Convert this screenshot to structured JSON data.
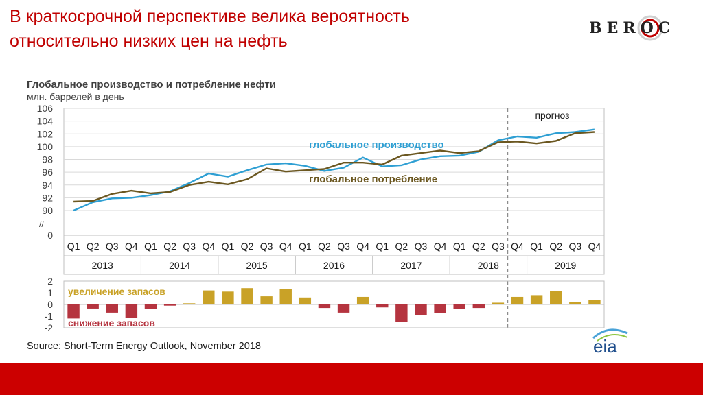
{
  "slide": {
    "title": "В краткосрочной перспективе велика вероятность относительно низких цен на нефть",
    "logo_text": "BEROC",
    "source": "Source: Short-Term Energy Outlook, November 2018",
    "source_logo_text": "eia"
  },
  "colors": {
    "title": "#c00000",
    "production": "#2e9fd3",
    "consumption": "#6b5720",
    "stock_increase": "#c9a227",
    "stock_decrease": "#b5343f",
    "footer": "#cc0000"
  },
  "chart_data": [
    {
      "type": "line",
      "title": "Глобальное производство и потребление нефти",
      "ylabel": "млн. баррелей в день",
      "ylim": [
        90,
        106
      ],
      "yticks": [
        0,
        90,
        92,
        94,
        96,
        98,
        100,
        102,
        104,
        106
      ],
      "axis_break": "//",
      "grid": true,
      "quarters": [
        "Q1",
        "Q2",
        "Q3",
        "Q4",
        "Q1",
        "Q2",
        "Q3",
        "Q4",
        "Q1",
        "Q2",
        "Q3",
        "Q4",
        "Q1",
        "Q2",
        "Q3",
        "Q4",
        "Q1",
        "Q2",
        "Q3",
        "Q4",
        "Q1",
        "Q2",
        "Q3",
        "Q4",
        "Q1",
        "Q2",
        "Q3",
        "Q4"
      ],
      "years": [
        "2013",
        "2014",
        "2015",
        "2016",
        "2017",
        "2018",
        "2019"
      ],
      "forecast_label": "прогноз",
      "forecast_start_index": 23,
      "series": [
        {
          "name": "глобальное производство",
          "values": [
            90.0,
            91.3,
            91.9,
            92.0,
            92.4,
            93.0,
            94.3,
            95.8,
            95.3,
            96.3,
            97.2,
            97.4,
            97.0,
            96.2,
            96.7,
            98.3,
            96.9,
            97.1,
            98.0,
            98.5,
            98.6,
            99.2,
            101.0,
            101.6,
            101.4,
            102.1,
            102.3,
            102.7
          ]
        },
        {
          "name": "глобальное потребление",
          "values": [
            91.4,
            91.5,
            92.6,
            93.1,
            92.7,
            92.9,
            94.0,
            94.5,
            94.1,
            94.9,
            96.6,
            96.1,
            96.3,
            96.5,
            97.5,
            97.5,
            97.2,
            98.6,
            99.0,
            99.4,
            99.0,
            99.3,
            100.7,
            100.8,
            100.5,
            100.9,
            102.1,
            102.3
          ]
        }
      ]
    },
    {
      "type": "bar",
      "ylim": [
        -2,
        2
      ],
      "yticks": [
        -2,
        -1,
        0,
        1,
        2
      ],
      "labels": {
        "increase": "увеличение запасов",
        "decrease": "снижение запасов"
      },
      "values": [
        -1.2,
        -0.35,
        -0.7,
        -1.15,
        -0.4,
        -0.1,
        0.1,
        1.2,
        1.1,
        1.4,
        0.7,
        1.3,
        0.6,
        -0.3,
        -0.7,
        0.65,
        -0.25,
        -1.5,
        -0.9,
        -0.75,
        -0.4,
        -0.3,
        0.15,
        0.65,
        0.8,
        1.15,
        0.2,
        0.4
      ]
    }
  ]
}
